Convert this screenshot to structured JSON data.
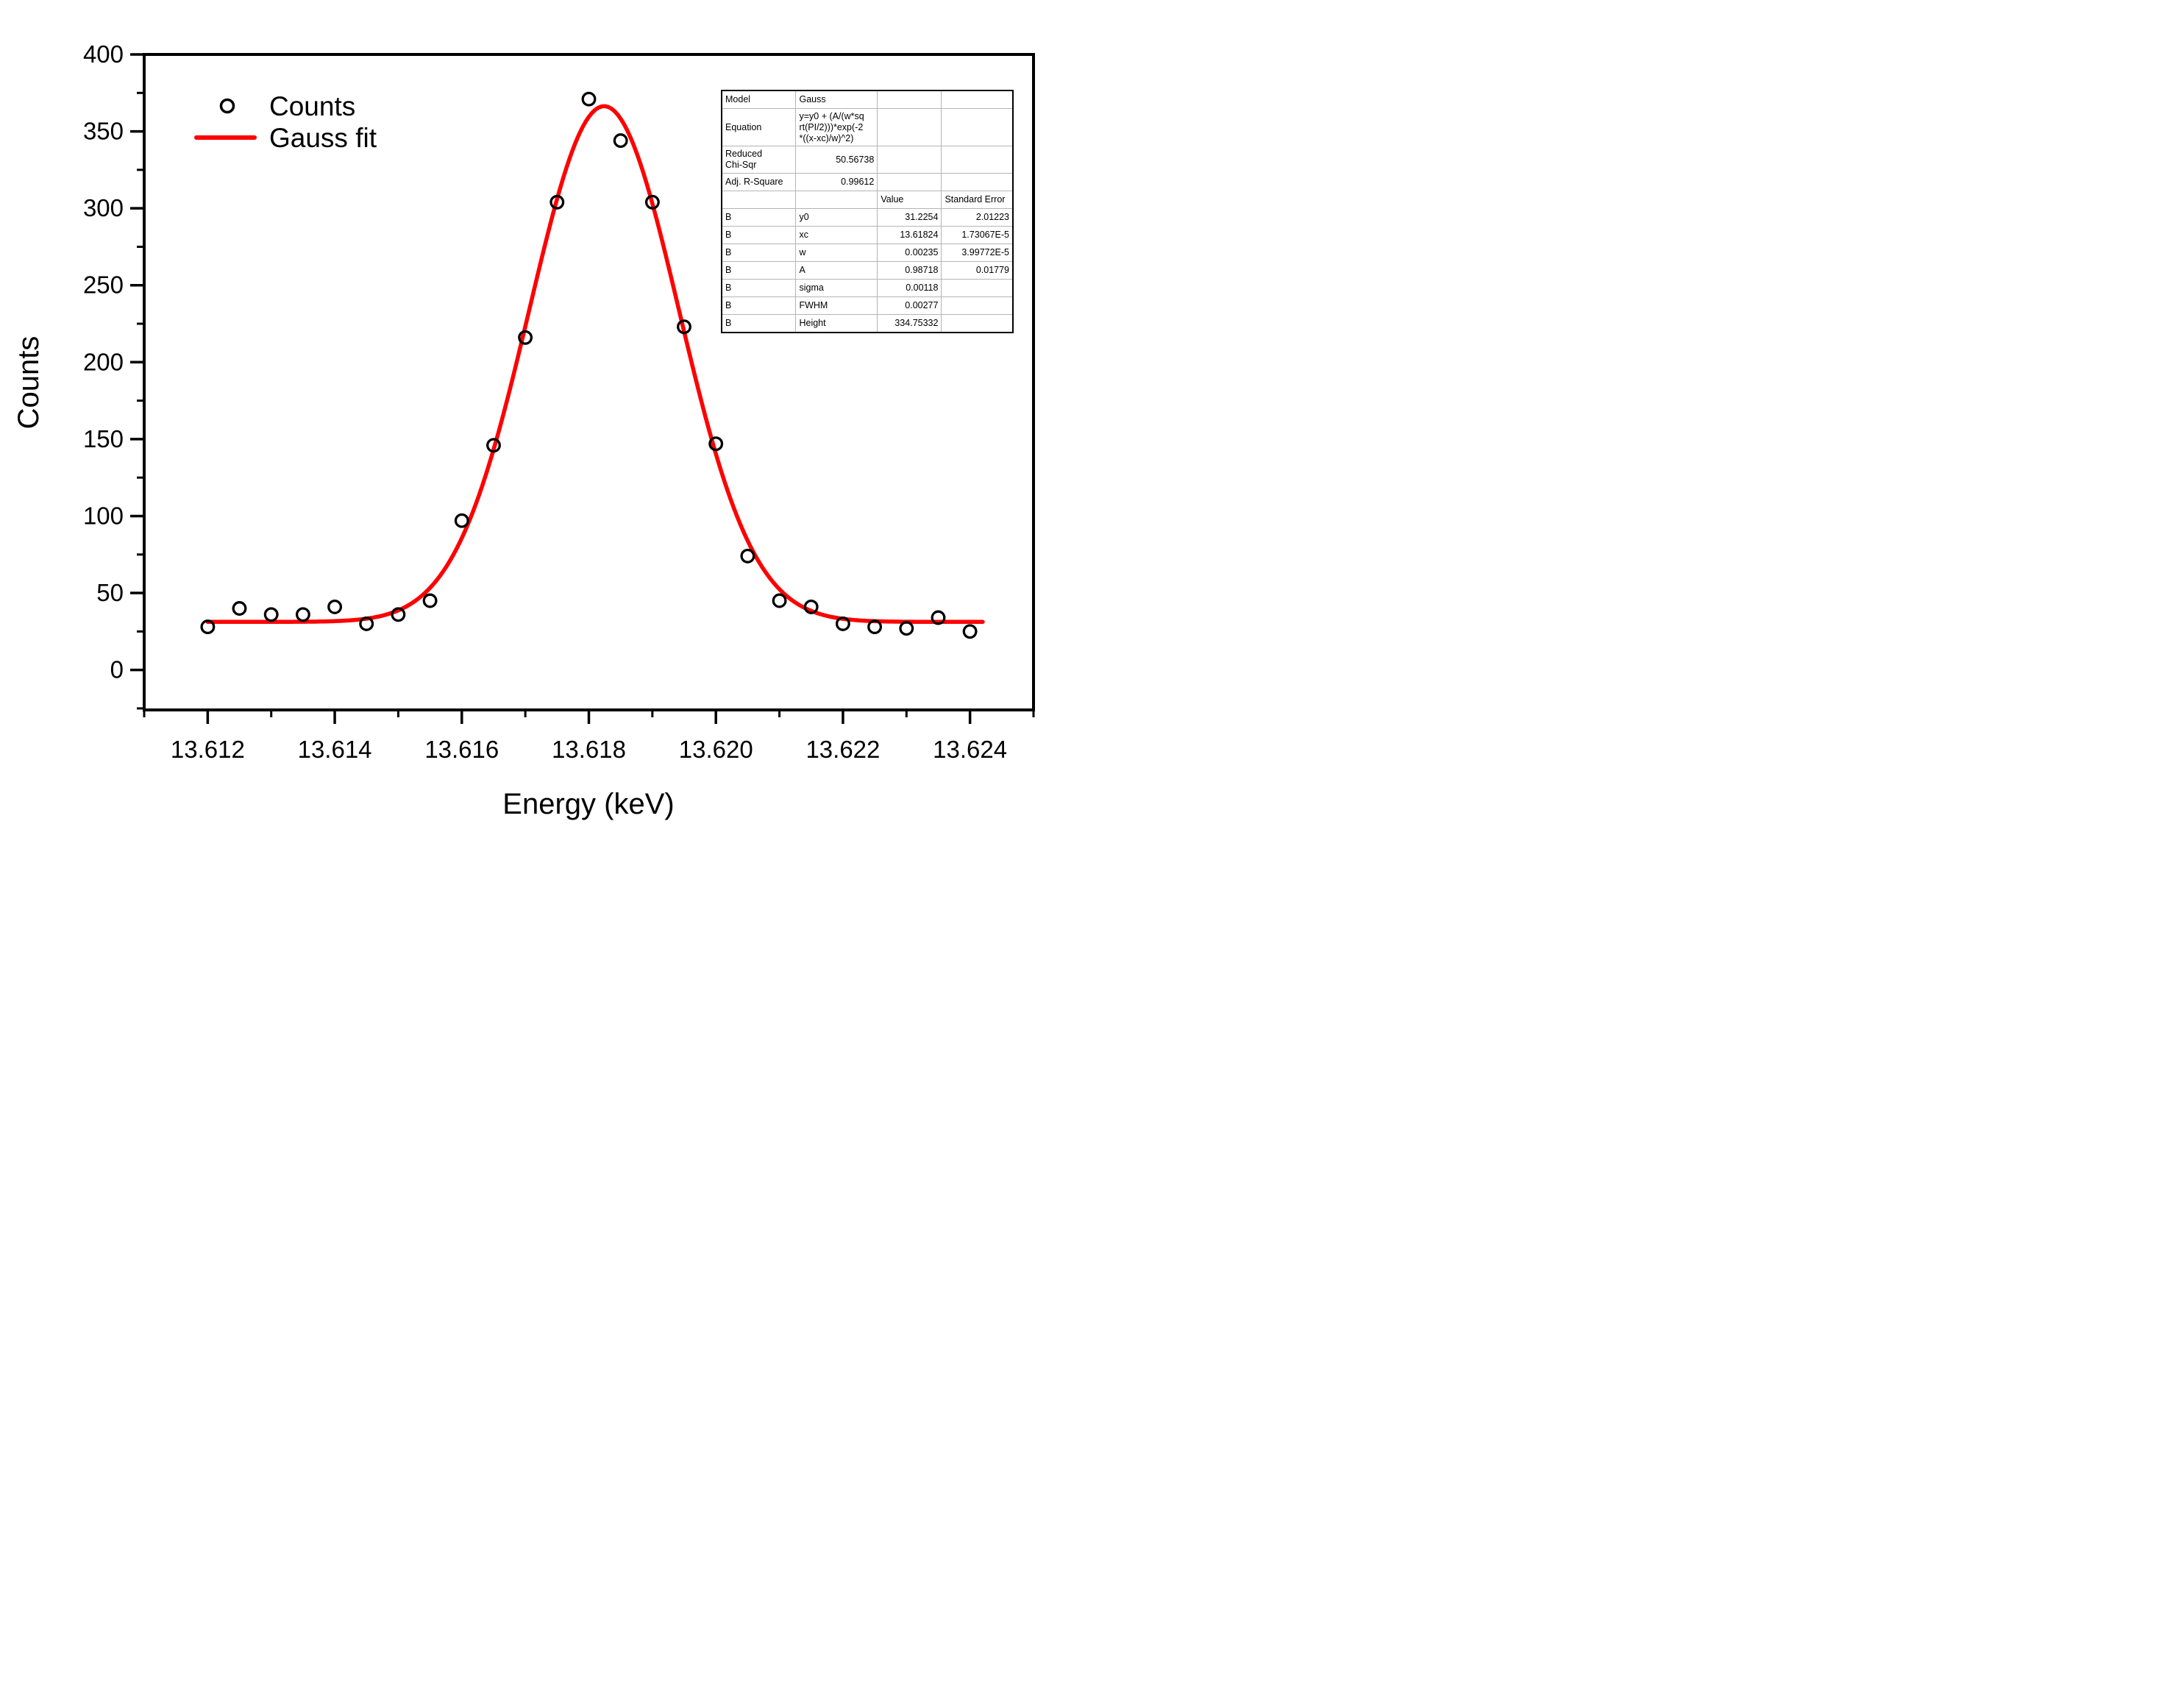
{
  "chart_data": {
    "type": "scatter",
    "title": "",
    "xlabel": "Energy (keV)",
    "ylabel": "Counts",
    "xlim": [
      13.611,
      13.625
    ],
    "ylim": [
      -26,
      400
    ],
    "x_major_ticks": [
      13.612,
      13.614,
      13.616,
      13.618,
      13.62,
      13.622,
      13.624
    ],
    "x_tick_labels": [
      "13.612",
      "13.614",
      "13.616",
      "13.618",
      "13.620",
      "13.622",
      "13.624"
    ],
    "x_minor_ticks": [
      13.611,
      13.613,
      13.615,
      13.617,
      13.619,
      13.621,
      13.623,
      13.625
    ],
    "y_major_ticks": [
      0,
      50,
      100,
      150,
      200,
      250,
      300,
      350,
      400
    ],
    "y_minor_ticks": [
      -25,
      25,
      75,
      125,
      175,
      225,
      275,
      325,
      375
    ],
    "grid": false,
    "background_color": "#ffffff",
    "axis_color": "#000000",
    "series": [
      {
        "name": "Counts",
        "type": "scatter",
        "marker": "open-circle",
        "color": "#000000",
        "x": [
          13.612,
          13.6125,
          13.613,
          13.6135,
          13.614,
          13.6145,
          13.615,
          13.6155,
          13.616,
          13.6165,
          13.617,
          13.6175,
          13.618,
          13.6185,
          13.619,
          13.6195,
          13.62,
          13.6205,
          13.621,
          13.6215,
          13.622,
          13.6225,
          13.623,
          13.6235,
          13.624
        ],
        "y": [
          28,
          40,
          36,
          36,
          41,
          30,
          36,
          45,
          97,
          146,
          216,
          304,
          371,
          344,
          304,
          223,
          147,
          74,
          45,
          41,
          30,
          28,
          27,
          34,
          25
        ]
      },
      {
        "name": "Gauss fit",
        "type": "fit-line",
        "color": "#ff0000",
        "fit": {
          "model": "Gauss",
          "y0": 31.2254,
          "xc": 13.61824,
          "w": 0.00235,
          "A": 0.98718
        },
        "x_range": [
          13.612,
          13.6242
        ]
      }
    ],
    "legend": {
      "position": "top-left-inside",
      "items": [
        {
          "label": "Counts",
          "marker": "open-circle",
          "color": "#000000"
        },
        {
          "label": "Gauss fit",
          "marker": "line",
          "color": "#ff0000"
        }
      ]
    }
  },
  "fit_table": {
    "rows": [
      {
        "cells": [
          {
            "t": "Model",
            "a": "l"
          },
          {
            "t": "Gauss",
            "a": "l"
          },
          {
            "t": "",
            "a": "l"
          },
          {
            "t": "",
            "a": "l"
          }
        ]
      },
      {
        "cells": [
          {
            "t": "Equation",
            "a": "l"
          },
          {
            "t": "y=y0 + (A/(w*sq\nrt(PI/2)))*exp(-2\n*((x-xc)/w)^2)",
            "a": "l"
          },
          {
            "t": "",
            "a": "l"
          },
          {
            "t": "",
            "a": "l"
          }
        ]
      },
      {
        "cells": [
          {
            "t": "Reduced\nChi-Sqr",
            "a": "l"
          },
          {
            "t": "50.56738",
            "a": "r"
          },
          {
            "t": "",
            "a": "l"
          },
          {
            "t": "",
            "a": "l"
          }
        ]
      },
      {
        "cells": [
          {
            "t": "Adj. R-Square",
            "a": "l"
          },
          {
            "t": "0.99612",
            "a": "r"
          },
          {
            "t": "",
            "a": "l"
          },
          {
            "t": "",
            "a": "l"
          }
        ]
      },
      {
        "cells": [
          {
            "t": "",
            "a": "l"
          },
          {
            "t": "",
            "a": "l"
          },
          {
            "t": "Value",
            "a": "l"
          },
          {
            "t": "Standard Error",
            "a": "l"
          }
        ]
      },
      {
        "cells": [
          {
            "t": "B",
            "a": "l"
          },
          {
            "t": "y0",
            "a": "l"
          },
          {
            "t": "31.2254",
            "a": "r"
          },
          {
            "t": "2.01223",
            "a": "r"
          }
        ]
      },
      {
        "cells": [
          {
            "t": "B",
            "a": "l"
          },
          {
            "t": "xc",
            "a": "l"
          },
          {
            "t": "13.61824",
            "a": "r"
          },
          {
            "t": "1.73067E-5",
            "a": "r"
          }
        ]
      },
      {
        "cells": [
          {
            "t": "B",
            "a": "l"
          },
          {
            "t": "w",
            "a": "l"
          },
          {
            "t": "0.00235",
            "a": "r"
          },
          {
            "t": "3.99772E-5",
            "a": "r"
          }
        ]
      },
      {
        "cells": [
          {
            "t": "B",
            "a": "l"
          },
          {
            "t": "A",
            "a": "l"
          },
          {
            "t": "0.98718",
            "a": "r"
          },
          {
            "t": "0.01779",
            "a": "r"
          }
        ]
      },
      {
        "cells": [
          {
            "t": "B",
            "a": "l"
          },
          {
            "t": "sigma",
            "a": "l"
          },
          {
            "t": "0.00118",
            "a": "r"
          },
          {
            "t": "",
            "a": "l"
          }
        ]
      },
      {
        "cells": [
          {
            "t": "B",
            "a": "l"
          },
          {
            "t": "FWHM",
            "a": "l"
          },
          {
            "t": "0.00277",
            "a": "r"
          },
          {
            "t": "",
            "a": "l"
          }
        ]
      },
      {
        "cells": [
          {
            "t": "B",
            "a": "l"
          },
          {
            "t": "Height",
            "a": "l"
          },
          {
            "t": "334.75332",
            "a": "r"
          },
          {
            "t": "",
            "a": "l"
          }
        ]
      }
    ]
  }
}
